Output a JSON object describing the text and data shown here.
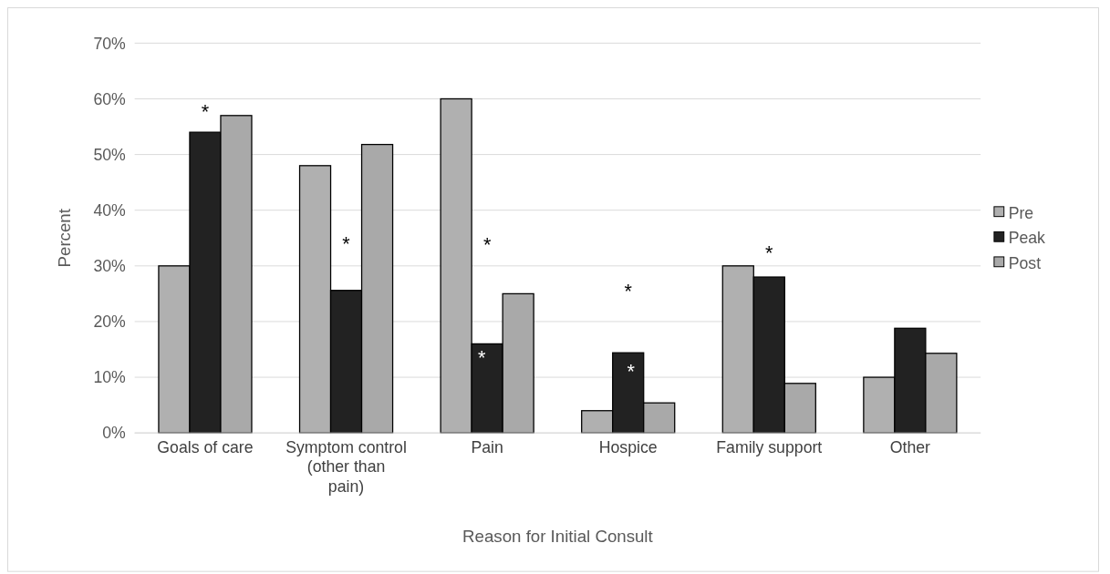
{
  "chart_data": {
    "type": "bar",
    "xlabel": "Reason for Initial Consult",
    "ylabel": "Percent",
    "categories": [
      "Goals of care",
      "Symptom control (other than pain)",
      "Pain",
      "Hospice",
      "Family support",
      "Other"
    ],
    "series": [
      {
        "name": "Pre",
        "color": "#b0b0b0",
        "values": [
          30,
          48,
          60,
          4,
          30,
          10
        ]
      },
      {
        "name": "Peak",
        "color": "#222222",
        "values": [
          54,
          25.6,
          16,
          14.4,
          28,
          18.8
        ]
      },
      {
        "name": "Post",
        "color": "#a9a9a9",
        "values": [
          57,
          51.8,
          25,
          5.4,
          8.9,
          14.3
        ]
      }
    ],
    "ylim": [
      0,
      70
    ],
    "yticks": [
      {
        "value": 0,
        "label": "0%"
      },
      {
        "value": 10,
        "label": "10%"
      },
      {
        "value": 20,
        "label": "20%"
      },
      {
        "value": 30,
        "label": "30%"
      },
      {
        "value": 40,
        "label": "40%"
      },
      {
        "value": 50,
        "label": "50%"
      },
      {
        "value": 60,
        "label": "60%"
      },
      {
        "value": 70,
        "label": "70%"
      }
    ],
    "grid": "y",
    "legend": "right",
    "annotations": [
      "*",
      "*",
      "*",
      "*",
      "*",
      "*",
      "*"
    ]
  }
}
